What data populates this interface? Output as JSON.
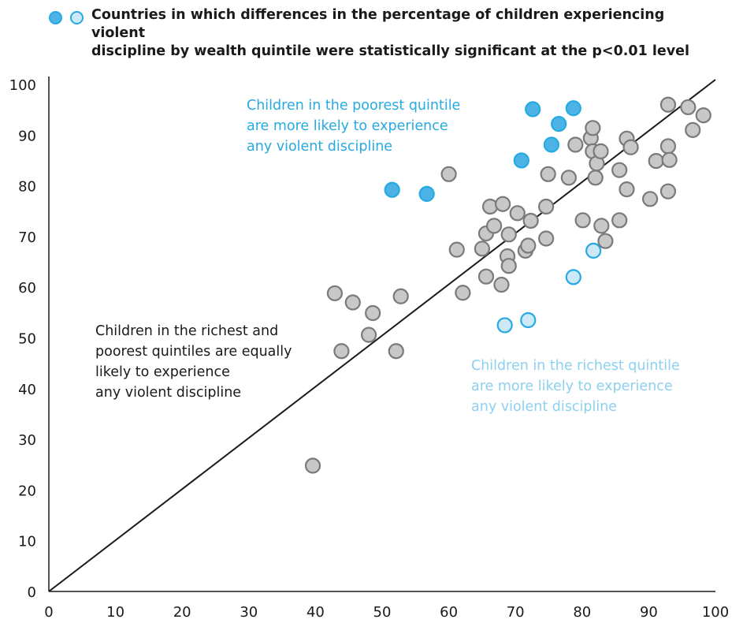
{
  "legend": {
    "line1": "Countries in which differences in the percentage of children experiencing violent",
    "line2": "discipline by wealth quintile were statistically significant at the p<0.01 level",
    "colors": {
      "poorest_dot": "#4db3e6",
      "richest_dot": "#cde8f7",
      "dot_stroke": "#27aae1"
    }
  },
  "annotations": {
    "poorest": [
      "Children in the poorest quintile",
      "are more likely to experience",
      "any violent discipline"
    ],
    "equal": [
      "Children in the richest and",
      "poorest quintiles are equally",
      "likely to experience",
      "any violent discipline"
    ],
    "richest": [
      "Children in the richest quintile",
      "are more likely to experience",
      "any violent discipline"
    ]
  },
  "chart_data": {
    "type": "scatter",
    "xlim": [
      0,
      100
    ],
    "ylim": [
      0,
      100
    ],
    "x_ticks": [
      0,
      10,
      20,
      30,
      40,
      50,
      60,
      70,
      80,
      90,
      100
    ],
    "y_ticks": [
      0,
      10,
      20,
      30,
      40,
      50,
      60,
      70,
      80,
      90,
      100
    ],
    "reference_line": "y = x",
    "colors": {
      "poorest_fill": "#4db3e6",
      "poorest_stroke": "#27aae1",
      "richest_fill": "#cde8f7",
      "richest_stroke": "#27aae1",
      "neutral_fill": "#c8c8c8",
      "neutral_stroke": "#7a7a7a",
      "line": "#1a1a1a"
    },
    "series": [
      {
        "group": "poorest",
        "points": [
          [
            51.5,
            79.2
          ],
          [
            56.7,
            78.4
          ],
          [
            70.9,
            85.0
          ],
          [
            72.6,
            95.1
          ],
          [
            75.4,
            88.1
          ],
          [
            76.5,
            92.2
          ],
          [
            78.7,
            95.3
          ]
        ]
      },
      {
        "group": "richest",
        "points": [
          [
            68.4,
            52.5
          ],
          [
            71.9,
            53.5
          ],
          [
            78.7,
            62.0
          ],
          [
            81.7,
            67.2
          ]
        ]
      },
      {
        "group": "neutral",
        "points": [
          [
            39.6,
            24.8
          ],
          [
            42.9,
            58.8
          ],
          [
            43.9,
            47.4
          ],
          [
            45.6,
            57.0
          ],
          [
            48.0,
            50.6
          ],
          [
            48.6,
            54.9
          ],
          [
            52.1,
            47.4
          ],
          [
            52.8,
            58.2
          ],
          [
            60.0,
            82.3
          ],
          [
            61.2,
            67.4
          ],
          [
            62.1,
            58.9
          ],
          [
            65.0,
            67.6
          ],
          [
            65.6,
            70.6
          ],
          [
            65.6,
            62.1
          ],
          [
            66.2,
            75.9
          ],
          [
            66.8,
            72.1
          ],
          [
            67.9,
            60.5
          ],
          [
            68.1,
            76.4
          ],
          [
            68.8,
            66.1
          ],
          [
            69.0,
            64.2
          ],
          [
            69.0,
            70.4
          ],
          [
            70.3,
            74.6
          ],
          [
            71.5,
            67.2
          ],
          [
            71.9,
            68.2
          ],
          [
            72.3,
            73.1
          ],
          [
            74.6,
            69.6
          ],
          [
            74.6,
            75.9
          ],
          [
            74.9,
            82.3
          ],
          [
            78.0,
            81.6
          ],
          [
            79.0,
            88.1
          ],
          [
            80.1,
            73.2
          ],
          [
            81.3,
            89.4
          ],
          [
            81.6,
            91.4
          ],
          [
            81.6,
            86.8
          ],
          [
            82.0,
            81.6
          ],
          [
            82.2,
            84.4
          ],
          [
            82.8,
            86.8
          ],
          [
            82.9,
            72.1
          ],
          [
            83.5,
            69.1
          ],
          [
            85.6,
            73.2
          ],
          [
            85.6,
            83.1
          ],
          [
            86.7,
            89.3
          ],
          [
            86.7,
            79.3
          ],
          [
            87.3,
            87.6
          ],
          [
            90.2,
            77.4
          ],
          [
            91.1,
            84.9
          ],
          [
            92.9,
            96.0
          ],
          [
            92.9,
            87.8
          ],
          [
            92.9,
            78.9
          ],
          [
            93.1,
            85.1
          ],
          [
            95.9,
            95.5
          ],
          [
            96.6,
            91.0
          ],
          [
            98.2,
            93.9
          ]
        ]
      }
    ]
  }
}
